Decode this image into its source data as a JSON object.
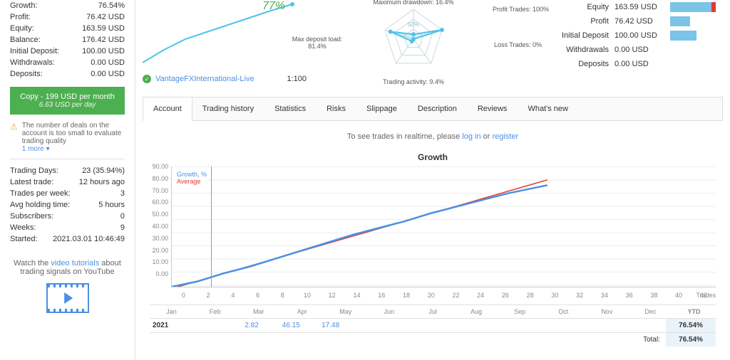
{
  "sidebar": {
    "stats1": [
      {
        "label": "Growth:",
        "value": "76.54%"
      },
      {
        "label": "Profit:",
        "value": "76.42 USD"
      },
      {
        "label": "Equity:",
        "value": "163.59 USD"
      },
      {
        "label": "Balance:",
        "value": "176.42 USD"
      },
      {
        "label": "Initial Deposit:",
        "value": "100.00 USD"
      },
      {
        "label": "Withdrawals:",
        "value": "0.00 USD"
      },
      {
        "label": "Deposits:",
        "value": "0.00 USD"
      }
    ],
    "copy": {
      "main": "Copy - 199 USD per month",
      "sub": "6.63 USD per day"
    },
    "warning": "The number of deals on the account is too small to evaluate trading quality",
    "more": "1 more ▾",
    "stats2": [
      {
        "label": "Trading Days:",
        "value": "23 (35.94%)"
      },
      {
        "label": "Latest trade:",
        "value": "12 hours ago"
      },
      {
        "label": "Trades per week:",
        "value": "3"
      },
      {
        "label": "Avg holding time:",
        "value": "5 hours"
      },
      {
        "label": "Subscribers:",
        "value": "0"
      },
      {
        "label": "Weeks:",
        "value": "9"
      },
      {
        "label": "Started:",
        "value": "2021.03.01 10:46:49"
      }
    ],
    "tutorial_pre": "Watch the ",
    "tutorial_link": "video tutorials",
    "tutorial_post": " about trading signals on YouTube"
  },
  "mini": {
    "pct": "77%",
    "account": "VantageFXInternational-Live",
    "leverage": "1:100",
    "line_color": "#4fc3e8",
    "points": [
      [
        0,
        88
      ],
      [
        30,
        70
      ],
      [
        60,
        55
      ],
      [
        90,
        45
      ],
      [
        120,
        35
      ],
      [
        150,
        25
      ],
      [
        180,
        15
      ],
      [
        210,
        6
      ]
    ]
  },
  "radar": {
    "labels": {
      "drawdown": "Maximum drawdown: 16.4%",
      "profit": "Profit Trades: 100%",
      "loss": "Loss Trades: 0%",
      "activity": "Trading activity: 9.4%",
      "deposit": "Max deposit load: 81.4%"
    },
    "ring_color": "#c8d8e0",
    "line_color": "#4fc3e8",
    "fill_color": "rgba(79,195,232,0.25)",
    "scale_label": "50%",
    "axes": 5,
    "values": [
      0.16,
      1.0,
      0.0,
      0.09,
      0.81
    ]
  },
  "rstats": [
    {
      "label": "Equity",
      "value": "163.59 USD",
      "fill": 0.95,
      "red": true
    },
    {
      "label": "Profit",
      "value": "76.42 USD",
      "fill": 0.44,
      "red": false
    },
    {
      "label": "Initial Deposit",
      "value": "100.00 USD",
      "fill": 0.58,
      "red": false
    },
    {
      "label": "Withdrawals",
      "value": "0.00 USD",
      "fill": 0,
      "red": false
    },
    {
      "label": "Deposits",
      "value": "0.00 USD",
      "fill": 0,
      "red": false
    }
  ],
  "bar_color": "#7cc3e8",
  "red_color": "#e53935",
  "tabs": [
    "Account",
    "Trading history",
    "Statistics",
    "Risks",
    "Slippage",
    "Description",
    "Reviews",
    "What's new"
  ],
  "active_tab": 0,
  "realtime": {
    "pre": "To see trades in realtime, please ",
    "login": "log in",
    "mid": " or ",
    "register": "register"
  },
  "growth": {
    "title": "Growth",
    "ylim": [
      0,
      90
    ],
    "ytick_step": 10,
    "xlim": [
      0,
      42
    ],
    "xtick_step": 2,
    "growth_color": "#4a90e2",
    "avg_color": "#e53935",
    "grid_color": "#eeeeee",
    "legend": [
      {
        "label": "Growth, %",
        "color": "#4a90e2"
      },
      {
        "label": "Average",
        "color": "#e53935"
      }
    ],
    "growth_line": [
      [
        0,
        0
      ],
      [
        2,
        4
      ],
      [
        3,
        7
      ],
      [
        4,
        10
      ],
      [
        6,
        15
      ],
      [
        8,
        21
      ],
      [
        10,
        27
      ],
      [
        12,
        33
      ],
      [
        14,
        39
      ],
      [
        16,
        44
      ],
      [
        18,
        49
      ],
      [
        20,
        55
      ],
      [
        22,
        60
      ],
      [
        24,
        65
      ],
      [
        26,
        70
      ],
      [
        28,
        74
      ],
      [
        29,
        76
      ]
    ],
    "avg_line": [
      [
        0.5,
        0
      ],
      [
        29,
        80
      ]
    ],
    "vline_x": 3,
    "xlabel": "Trades"
  },
  "months": [
    "Jan",
    "Feb",
    "Mar",
    "Apr",
    "May",
    "Jun",
    "Jul",
    "Aug",
    "Sep",
    "Oct",
    "Nov",
    "Dec",
    "YTD"
  ],
  "year_row": {
    "year": "2021",
    "values": [
      "",
      "2.82",
      "46.15",
      "17.48",
      "",
      "",
      "",
      "",
      "",
      "",
      "",
      ""
    ],
    "ytd": "76.54%"
  },
  "total": {
    "label": "Total:",
    "value": "76.54%"
  }
}
